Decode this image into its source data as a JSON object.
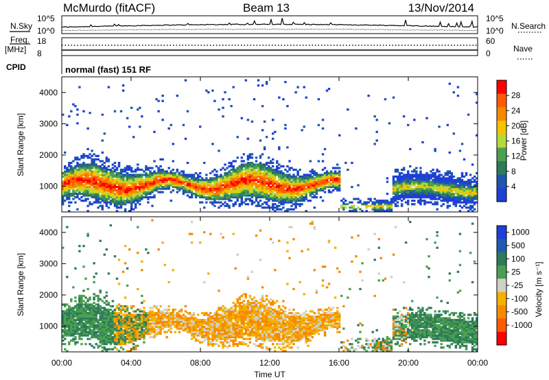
{
  "header": {
    "station": "McMurdo (fitACF)",
    "beam": "Beam 13",
    "date": "13/Nov/2014"
  },
  "top_panels": {
    "nsky_label": "N.Sky",
    "nsky_ticks": [
      "10^5",
      "10^0"
    ],
    "nsearch_label": "N.Search",
    "nsearch_ticks": [
      "10^5",
      "10^0"
    ],
    "freq_label": "Freq.",
    "freq_unit": "[MHz]",
    "freq_ticks": [
      "18",
      "8"
    ],
    "nave_label": "Nave",
    "nave_ticks": [
      "60",
      "0"
    ],
    "cpid_label": "CPID",
    "cpid_text": "normal (fast) 151 RF"
  },
  "colors": {
    "power_scale": [
      "#1e3fd8",
      "#1e55b0",
      "#2e7a5a",
      "#4aa050",
      "#b7d83a",
      "#f5c400",
      "#f58a00",
      "#ff5a00",
      "#ff0000"
    ],
    "velocity_scale": [
      "#1e3fd8",
      "#1f5bb4",
      "#2e7a5a",
      "#4aa050",
      "#d0d0c8",
      "#f5b000",
      "#f58a00",
      "#ff5a00",
      "#ff0000"
    ]
  },
  "chart_data": [
    {
      "type": "heatmap",
      "panel": "power",
      "ylabel": "Slant Range [km]",
      "ylim": [
        180,
        4500
      ],
      "yticks": [
        1000,
        2000,
        3000,
        4000
      ],
      "xlim": [
        0,
        24
      ],
      "colorbar_label": "Power [dB]",
      "colorbar_ticks": [
        "4",
        "8",
        "12",
        "16",
        "20",
        "24",
        "28"
      ],
      "colorbar_range": [
        0,
        32
      ]
    },
    {
      "type": "heatmap",
      "panel": "velocity",
      "ylabel": "Slant Range [km]",
      "ylim": [
        180,
        4500
      ],
      "yticks": [
        1000,
        2000,
        3000,
        4000
      ],
      "xlim": [
        0,
        24
      ],
      "xticks": [
        "00:00",
        "04:00",
        "08:00",
        "12:00",
        "16:00",
        "20:00",
        "00:00"
      ],
      "xlabel": "Time UT",
      "colorbar_label": "Velocity [m s⁻¹]",
      "colorbar_ticks": [
        "1000",
        "500",
        "100",
        "25",
        "-25",
        "-100",
        "-500",
        "-1000"
      ]
    }
  ]
}
